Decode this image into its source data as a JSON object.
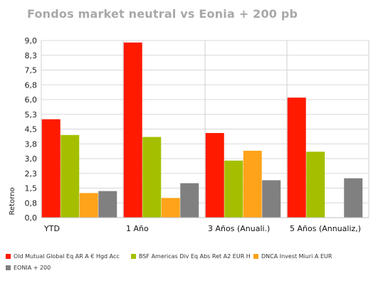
{
  "chart_data": {
    "type": "bar",
    "title": "Fondos market neutral vs Eonia + 200 pb",
    "xlabel": "",
    "ylabel": "Retorno",
    "ylim": [
      0,
      9.0
    ],
    "yticks": [
      "0,0",
      "0,8",
      "1,5",
      "2,3",
      "3,0",
      "3,8",
      "4,5",
      "5,3",
      "6,0",
      "6,8",
      "7,5",
      "8,3",
      "9,0"
    ],
    "categories": [
      "YTD",
      "1 Año",
      "3 Años (Anuali.)",
      "5 Años (Annualiz,)"
    ],
    "grid": true,
    "legend_position": "bottom",
    "series": [
      {
        "name": "Old Mutual Global Eq AR A € Hgd Acc",
        "color": "#ff1a00",
        "values": [
          5.0,
          8.9,
          4.3,
          6.1
        ]
      },
      {
        "name": "BSF Americas Div Eq Abs Ret A2 EUR H",
        "color": "#a5bf00",
        "values": [
          4.2,
          4.1,
          2.9,
          3.35
        ]
      },
      {
        "name": "DNCA Invest Miuri A EUR",
        "color": "#ffa31a",
        "values": [
          1.25,
          1.0,
          3.4,
          null
        ]
      },
      {
        "name": "EONIA + 200",
        "color": "#808080",
        "values": [
          1.35,
          1.75,
          1.9,
          2.0
        ]
      }
    ]
  }
}
